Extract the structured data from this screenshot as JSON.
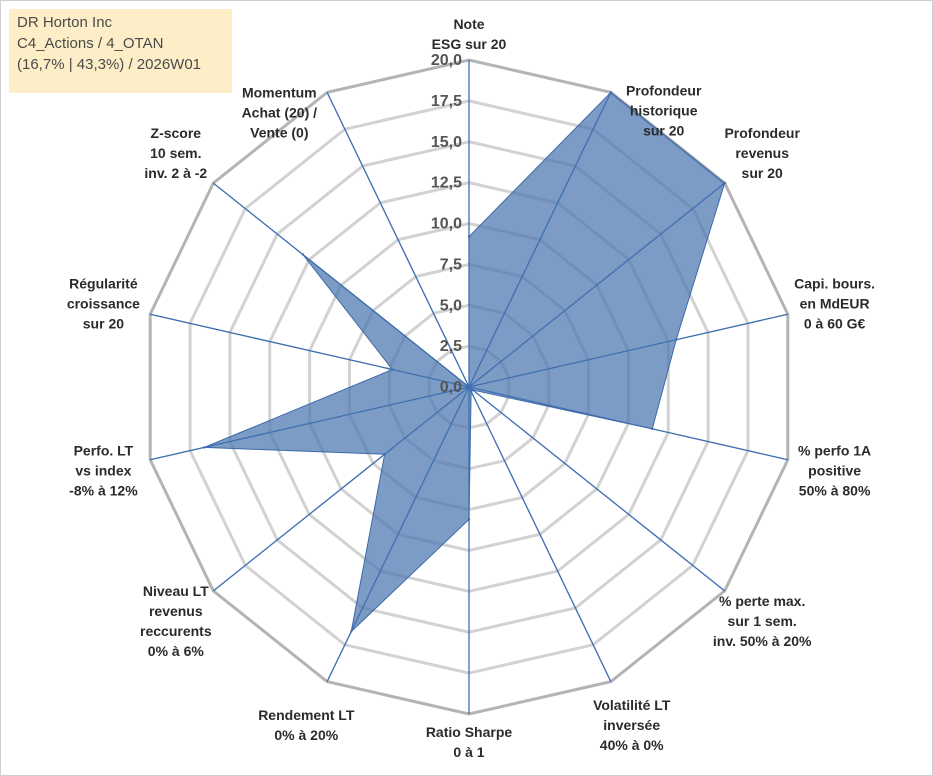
{
  "info": {
    "line1": "DR Horton Inc",
    "line2": "C4_Actions / 4_OTAN",
    "line3": "(16,7% | 43,3%) / 2026W01"
  },
  "chart_data": {
    "type": "radar",
    "title": "",
    "rmin": 0,
    "rmax": 20,
    "ticks": [
      "0,0",
      "2,5",
      "5,0",
      "7,5",
      "10,0",
      "12,5",
      "15,0",
      "17,5",
      "20,0"
    ],
    "axes": [
      {
        "label": [
          "Note",
          "ESG sur 20"
        ],
        "value": 9.2
      },
      {
        "label": [
          "Profondeur",
          "historique",
          "sur 20"
        ],
        "value": 20.0
      },
      {
        "label": [
          "Profondeur",
          "revenus",
          "sur 20"
        ],
        "value": 20.0
      },
      {
        "label": [
          "Capi. bours.",
          "en MdEUR",
          "0 à 60 G€"
        ],
        "value": 13.0
      },
      {
        "label": [
          "% perfo 1A",
          "positive",
          "50% à 80%"
        ],
        "value": 11.5
      },
      {
        "label": [
          "% perte max.",
          "sur 1 sem.",
          "inv. 50% à 20%"
        ],
        "value": 0.3
      },
      {
        "label": [
          "Volatilité LT",
          "inversée",
          "40% à 0%"
        ],
        "value": 0.3
      },
      {
        "label": [
          "Ratio Sharpe",
          "0 à 1"
        ],
        "value": 8.1
      },
      {
        "label": [
          "Rendement LT",
          "0% à 20%"
        ],
        "value": 16.6
      },
      {
        "label": [
          "Niveau LT",
          "revenus",
          "reccurents",
          "0% à 6%"
        ],
        "value": 6.6
      },
      {
        "label": [
          "Perfo. LT",
          "vs index",
          "-8% à 12%"
        ],
        "value": 16.6
      },
      {
        "label": [
          "Régularité",
          "croissance",
          "sur 20"
        ],
        "value": 4.8
      },
      {
        "label": [
          "Z-score",
          "10 sem.",
          "inv. 2 à -2"
        ],
        "value": 13.0
      },
      {
        "label": [
          "Momentum",
          "Achat (20) /",
          "Vente (0)"
        ],
        "value": 0.0
      }
    ],
    "series": [
      {
        "name": "DR Horton Inc",
        "color": "#4a76af"
      }
    ]
  }
}
